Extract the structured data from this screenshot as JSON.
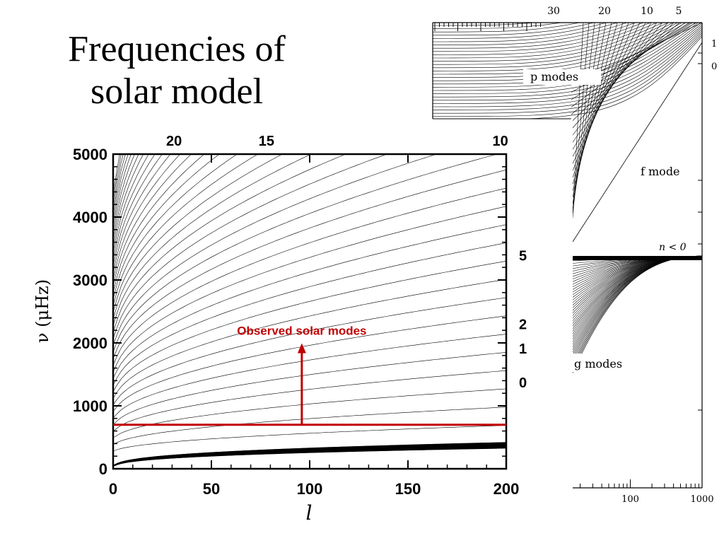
{
  "slide": {
    "title_line1": "Frequencies of",
    "title_line2": "solar model"
  },
  "chart_data": [
    {
      "id": "main",
      "type": "line",
      "title": "",
      "xlabel": "l",
      "ylabel": "ν  (μHz)",
      "xlim": [
        0,
        200
      ],
      "ylim": [
        0,
        5000
      ],
      "xticks": [
        0,
        50,
        100,
        150,
        200
      ],
      "yticks": [
        0,
        1000,
        2000,
        3000,
        4000,
        5000
      ],
      "top_axis_labels": [
        {
          "label": "20",
          "x": 31
        },
        {
          "label": "15",
          "x": 78
        },
        {
          "label": "10",
          "x": 197
        }
      ],
      "right_axis_labels": [
        {
          "label": "5",
          "y": 3400
        },
        {
          "label": "2",
          "y": 2310
        },
        {
          "label": "1",
          "y": 1920
        },
        {
          "label": "0",
          "y": 1380
        }
      ],
      "p_mode_ridges": 40,
      "p_mode_ridge_frequency_at_l200_muHz_first": 400,
      "g_mode_band_muHz": [
        0,
        420
      ],
      "annotation": {
        "text": "Observed solar modes",
        "color": "#c00000",
        "threshold_muHz": 700,
        "arrow_x": 96,
        "arrow_to_muHz": 1950
      },
      "grid": false,
      "legend": "none"
    },
    {
      "id": "inset",
      "type": "line",
      "xscale": "log",
      "xlim": [
        1,
        1000
      ],
      "xticks": [
        100,
        1000
      ],
      "top_axis_labels": [
        "30",
        "20",
        "10",
        "5"
      ],
      "right_axis_labels": [
        "1",
        "0"
      ],
      "region_labels": [
        "p modes",
        "f mode",
        "n < 0",
        "g modes"
      ],
      "grid": false,
      "legend": "none"
    }
  ]
}
